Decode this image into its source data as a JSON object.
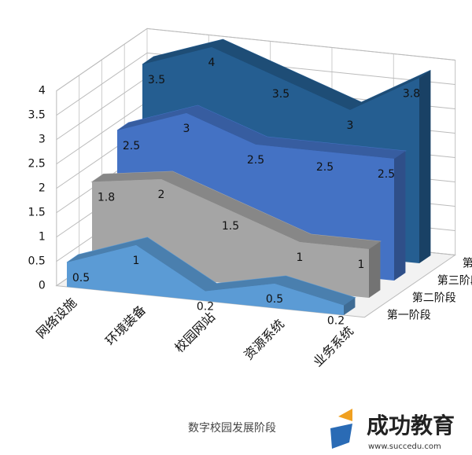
{
  "chart_data": {
    "type": "area3d",
    "title": "数字校园发展阶段",
    "categories": [
      "网络设施",
      "环境装备",
      "校园网站",
      "资源系统",
      "业务系统"
    ],
    "series": [
      {
        "name": "第一阶段",
        "color": "#5b9bd5",
        "values": [
          0.5,
          1,
          0.2,
          0.5,
          0.2
        ]
      },
      {
        "name": "第二阶段",
        "color": "#a5a5a5",
        "values": [
          1.8,
          2,
          1.5,
          1,
          1
        ]
      },
      {
        "name": "第三阶段",
        "color": "#4472c4",
        "values": [
          2.5,
          3,
          2.5,
          2.5,
          2.5
        ]
      },
      {
        "name": "第四阶段",
        "color": "#255e91",
        "values": [
          3.5,
          4,
          3.5,
          3,
          3.8
        ]
      }
    ],
    "ylim": [
      0,
      4
    ],
    "yticks": [
      0,
      0.5,
      1,
      1.5,
      2,
      2.5,
      3,
      3.5,
      4
    ],
    "grid": true
  },
  "watermark": {
    "brand": "成功教育",
    "url": "www.succedu.com"
  }
}
